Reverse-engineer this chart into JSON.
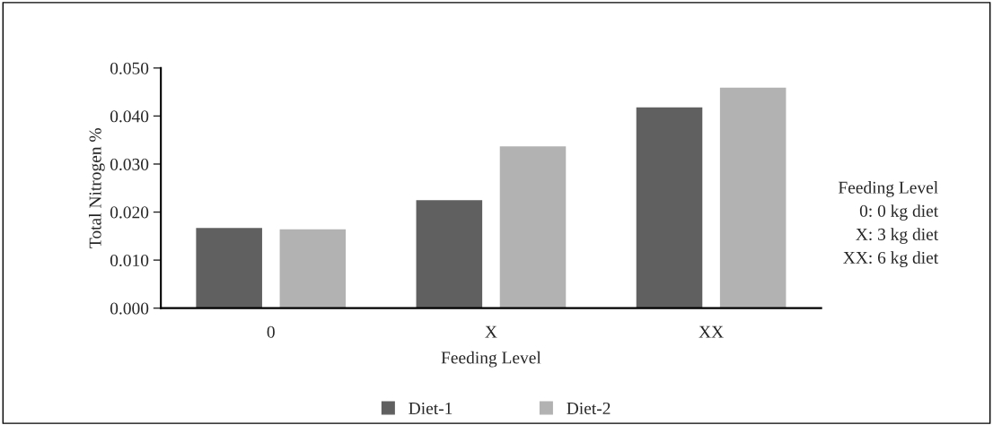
{
  "chart_data": {
    "type": "bar",
    "categories": [
      "0",
      "X",
      "XX"
    ],
    "series": [
      {
        "name": "Diet-1",
        "color": "#606060",
        "values": [
          0.0167,
          0.0225,
          0.0418
        ]
      },
      {
        "name": "Diet-2",
        "color": "#b2b2b2",
        "values": [
          0.0164,
          0.0337,
          0.0459
        ]
      }
    ],
    "xlabel": "Feeding Level",
    "ylabel": "Total Nitrogen %",
    "ylim": [
      0,
      0.05
    ],
    "yticks": [
      {
        "value": 0,
        "label": "0.000"
      },
      {
        "value": 0.01,
        "label": "0.010"
      },
      {
        "value": 0.02,
        "label": "0.020"
      },
      {
        "value": 0.03,
        "label": "0.030"
      },
      {
        "value": 0.04,
        "label": "0.040"
      },
      {
        "value": 0.05,
        "label": "0.050"
      }
    ],
    "annotations": [
      "Feeding Level",
      "0: 0 kg diet",
      "X: 3 kg diet",
      "XX: 6 kg diet"
    ],
    "grid": false,
    "legend": "bottom"
  }
}
